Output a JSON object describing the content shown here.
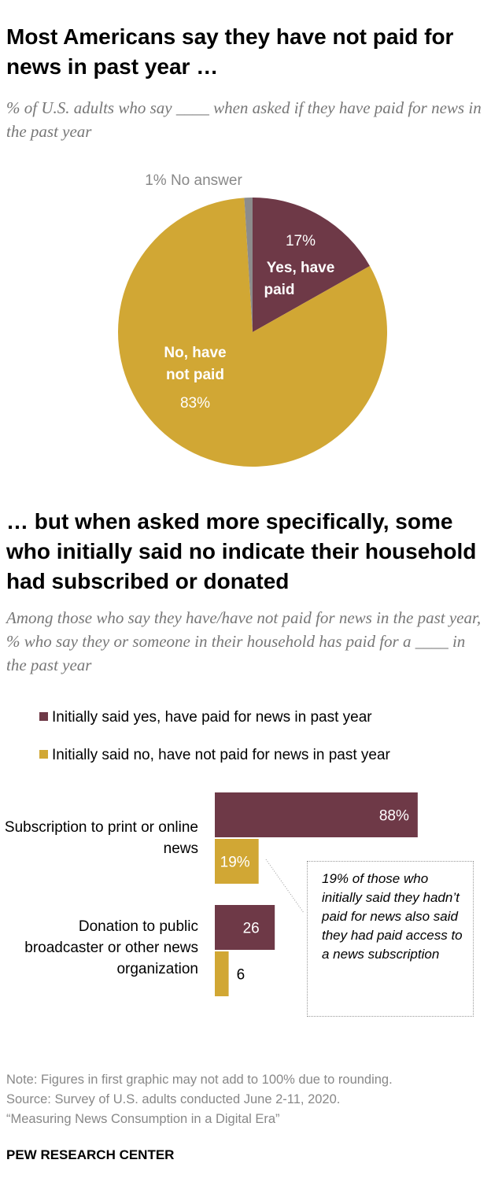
{
  "title1": "Most Americans say they have not paid for news in past year …",
  "subtitle1": "% of U.S. adults who say ____ when asked if they have paid for news in the past year",
  "title2": "… but when asked more specifically, some who initially said no indicate their household had subscribed or donated",
  "subtitle2": "Among those who say they have/have not paid for news in the past year, % who say they or someone in their household has paid for a ____ in the past year",
  "callout": "19% of those who initially said they hadn’t paid for news also said they had paid access to a news subscription",
  "note": "Note: Figures in first graphic may not add to 100% due to rounding.",
  "source": "Source: Survey of U.S. adults conducted June 2-11, 2020.",
  "report": "“Measuring News Consumption in a Digital Era”",
  "brand": "PEW RESEARCH CENTER",
  "colors": {
    "yes": "#6e3947",
    "no": "#d1a734",
    "no_answer": "#8c8c8c"
  },
  "chart_data": [
    {
      "type": "pie",
      "slices": [
        {
          "label": "Yes, have paid",
          "value": 17,
          "value_label": "17%",
          "color": "#6e3947"
        },
        {
          "label": "No, have not paid",
          "value": 83,
          "value_label": "83%",
          "color": "#d1a734"
        },
        {
          "label": "No answer",
          "value": 1,
          "value_label": "1%",
          "color": "#8c8c8c"
        }
      ]
    },
    {
      "type": "bar",
      "orientation": "horizontal",
      "categories": [
        "Subscription to print or online news",
        "Donation to public broadcaster or other news organization"
      ],
      "series": [
        {
          "name": "Initially said yes, have paid for news in past year",
          "values": [
            88,
            26
          ],
          "value_labels": [
            "88%",
            "26"
          ],
          "color": "#6e3947"
        },
        {
          "name": "Initially said no, have not paid for news in past year",
          "values": [
            19,
            6
          ],
          "value_labels": [
            "19%",
            "6"
          ],
          "color": "#d1a734"
        }
      ],
      "xlim": [
        0,
        100
      ],
      "legend": "top"
    }
  ]
}
